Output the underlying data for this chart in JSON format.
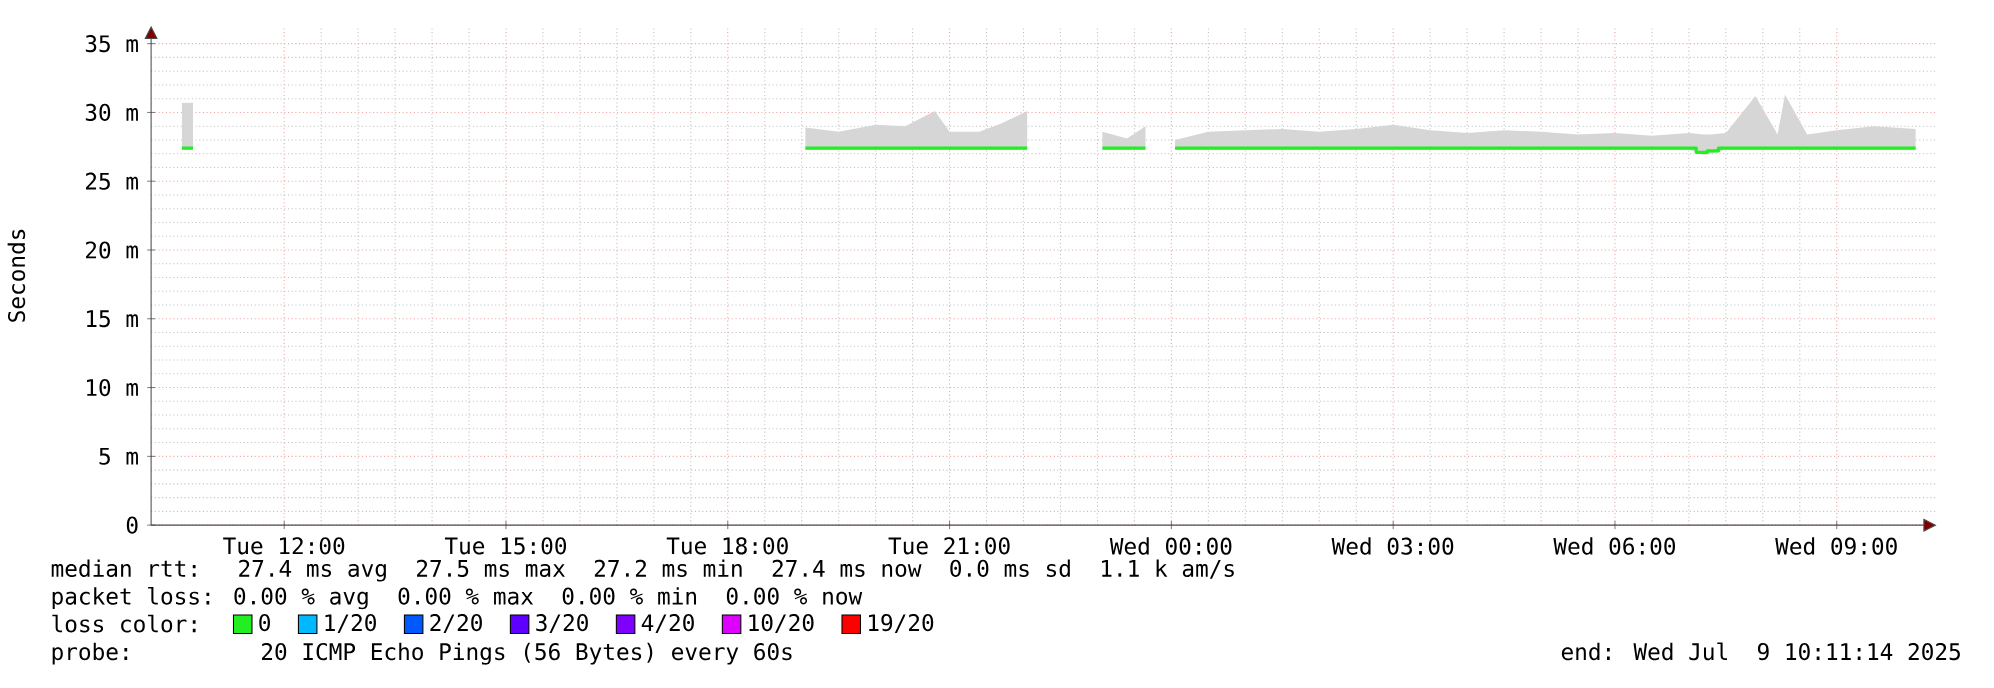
{
  "chart_data": {
    "type": "line",
    "ylabel": "Seconds",
    "x": [
      "2025-07-08T10:37",
      "2025-07-08T10:46",
      "2025-07-08T15:00",
      "2025-07-08T19:03",
      "2025-07-08T19:30",
      "2025-07-08T20:00",
      "2025-07-08T20:24",
      "2025-07-08T20:48",
      "2025-07-08T21:00",
      "2025-07-08T21:24",
      "2025-07-08T21:42",
      "2025-07-08T22:03",
      "2025-07-08T22:30",
      "2025-07-08T23:04",
      "2025-07-08T23:24",
      "2025-07-08T23:39",
      "2025-07-08T23:51",
      "2025-07-09T00:03",
      "2025-07-09T00:30",
      "2025-07-09T01:00",
      "2025-07-09T01:30",
      "2025-07-09T02:00",
      "2025-07-09T02:30",
      "2025-07-09T03:00",
      "2025-07-09T03:30",
      "2025-07-09T04:00",
      "2025-07-09T04:30",
      "2025-07-09T05:00",
      "2025-07-09T05:30",
      "2025-07-09T06:00",
      "2025-07-09T06:30",
      "2025-07-09T07:00",
      "2025-07-09T07:12",
      "2025-07-09T07:18",
      "2025-07-09T07:30",
      "2025-07-09T07:54",
      "2025-07-09T08:12",
      "2025-07-09T08:18",
      "2025-07-09T08:36",
      "2025-07-09T09:00",
      "2025-07-09T09:30",
      "2025-07-09T10:04"
    ],
    "series": [
      {
        "name": "0",
        "color": "#22ee22",
        "values": [
          27.4,
          27.4,
          null,
          27.4,
          27.4,
          27.4,
          27.4,
          27.4,
          27.4,
          27.4,
          27.4,
          27.4,
          null,
          27.4,
          27.4,
          27.4,
          null,
          27.4,
          27.4,
          27.4,
          27.4,
          27.4,
          27.4,
          27.4,
          27.4,
          27.4,
          27.4,
          27.4,
          27.4,
          27.4,
          27.4,
          27.4,
          27.1,
          27.2,
          27.4,
          27.4,
          27.4,
          27.4,
          27.4,
          27.4,
          27.4,
          27.4
        ],
        "lower": [
          27.3,
          27.3,
          null,
          27.3,
          27.3,
          27.3,
          27.3,
          27.3,
          27.3,
          27.3,
          27.3,
          27.3,
          null,
          27.3,
          27.3,
          27.3,
          null,
          27.3,
          27.3,
          27.3,
          27.3,
          27.3,
          27.3,
          27.3,
          27.3,
          27.3,
          27.3,
          27.3,
          27.3,
          27.3,
          27.3,
          27.3,
          26.9,
          27.0,
          27.3,
          27.3,
          27.3,
          27.3,
          27.3,
          27.3,
          27.3,
          27.3
        ],
        "upper": [
          30.7,
          30.7,
          null,
          28.9,
          28.6,
          29.1,
          29.0,
          30.1,
          28.6,
          28.6,
          29.2,
          30.1,
          null,
          28.6,
          28.1,
          29.0,
          null,
          28.0,
          28.6,
          28.7,
          28.8,
          28.6,
          28.8,
          29.1,
          28.7,
          28.5,
          28.7,
          28.6,
          28.4,
          28.5,
          28.3,
          28.5,
          28.4,
          28.4,
          28.5,
          31.2,
          28.4,
          31.3,
          28.4,
          28.7,
          29.0,
          28.8
        ]
      },
      {
        "name": "1/20",
        "color": "#00b8ff",
        "values": [
          null,
          null,
          null,
          null,
          null,
          null,
          null,
          null,
          null,
          null,
          null,
          null,
          null,
          null,
          null,
          null,
          null,
          null,
          null,
          null,
          null,
          null,
          null,
          null,
          null,
          null,
          null,
          null,
          null,
          null,
          null,
          null,
          null,
          null,
          null,
          null,
          null,
          null,
          null,
          null,
          null,
          null
        ]
      },
      {
        "name": "2/20",
        "color": "#0059ff",
        "values": [
          null,
          null,
          null,
          null,
          null,
          null,
          null,
          null,
          null,
          null,
          null,
          null,
          null,
          null,
          null,
          null,
          null,
          null,
          null,
          null,
          null,
          null,
          null,
          null,
          null,
          null,
          null,
          null,
          null,
          null,
          null,
          null,
          null,
          null,
          null,
          null,
          null,
          null,
          null,
          null,
          null,
          null
        ]
      },
      {
        "name": "3/20",
        "color": "#5e00ff",
        "values": [
          null,
          null,
          null,
          null,
          null,
          null,
          null,
          null,
          null,
          null,
          null,
          null,
          null,
          null,
          null,
          null,
          null,
          null,
          null,
          null,
          null,
          null,
          null,
          null,
          null,
          null,
          null,
          null,
          null,
          null,
          null,
          null,
          null,
          null,
          null,
          null,
          null,
          null,
          null,
          null,
          null,
          null
        ]
      },
      {
        "name": "4/20",
        "color": "#7e00ff",
        "values": [
          null,
          null,
          null,
          null,
          null,
          null,
          null,
          null,
          null,
          null,
          null,
          null,
          null,
          null,
          null,
          null,
          null,
          null,
          null,
          null,
          null,
          null,
          null,
          null,
          null,
          null,
          null,
          null,
          null,
          null,
          null,
          null,
          null,
          null,
          null,
          null,
          null,
          null,
          null,
          null,
          null,
          null
        ]
      },
      {
        "name": "10/20",
        "color": "#dd00ff",
        "values": [
          null,
          null,
          null,
          null,
          null,
          null,
          null,
          null,
          null,
          null,
          null,
          null,
          null,
          null,
          null,
          null,
          null,
          null,
          null,
          null,
          null,
          null,
          null,
          null,
          null,
          null,
          null,
          null,
          null,
          null,
          null,
          null,
          null,
          null,
          null,
          null,
          null,
          null,
          null,
          null,
          null,
          null
        ]
      },
      {
        "name": "19/20",
        "color": "#ff0000",
        "values": [
          null,
          null,
          null,
          null,
          null,
          null,
          null,
          null,
          null,
          null,
          null,
          null,
          null,
          null,
          null,
          null,
          null,
          null,
          null,
          null,
          null,
          null,
          null,
          null,
          null,
          null,
          null,
          null,
          null,
          null,
          null,
          null,
          null,
          null,
          null,
          null,
          null,
          null,
          null,
          null,
          null,
          null
        ]
      }
    ],
    "legend_title": "loss color:",
    "legend": "bottom",
    "xlim": [
      "2025-07-08T10:12",
      "2025-07-09T10:21"
    ],
    "xticks": [
      {
        "value": "2025-07-08T12:00",
        "label": "Tue 12:00"
      },
      {
        "value": "2025-07-08T15:00",
        "label": "Tue 15:00"
      },
      {
        "value": "2025-07-08T18:00",
        "label": "Tue 18:00"
      },
      {
        "value": "2025-07-08T21:00",
        "label": "Tue 21:00"
      },
      {
        "value": "2025-07-09T00:00",
        "label": "Wed 00:00"
      },
      {
        "value": "2025-07-09T03:00",
        "label": "Wed 03:00"
      },
      {
        "value": "2025-07-09T06:00",
        "label": "Wed 06:00"
      },
      {
        "value": "2025-07-09T09:00",
        "label": "Wed 09:00"
      }
    ],
    "ylim": [
      0,
      36.3
    ],
    "yticks": [
      0,
      {
        "value": 5,
        "label": "5 m"
      },
      {
        "value": 10,
        "label": "10 m"
      },
      {
        "value": 15,
        "label": "15 m"
      },
      {
        "value": 20,
        "label": "20 m"
      },
      {
        "value": 25,
        "label": "25 m"
      },
      {
        "value": 30,
        "label": "30 m"
      },
      {
        "value": 35,
        "label": "35 m"
      }
    ],
    "grid": true,
    "line_style": "solid",
    "annotations": [
      "median rtt:  27.4 ms avg  27.5 ms max  27.2 ms min  27.4 ms now  0.0 ms sd  1.1 k am/s",
      "packet loss: 0.00 % avg  0.00 % max  0.00 % min  0.00 % now",
      "probe:       20 ICMP Echo Pings (56 Bytes) every 60s",
      "end: Wed Jul  9 10:11:14 2025"
    ]
  }
}
